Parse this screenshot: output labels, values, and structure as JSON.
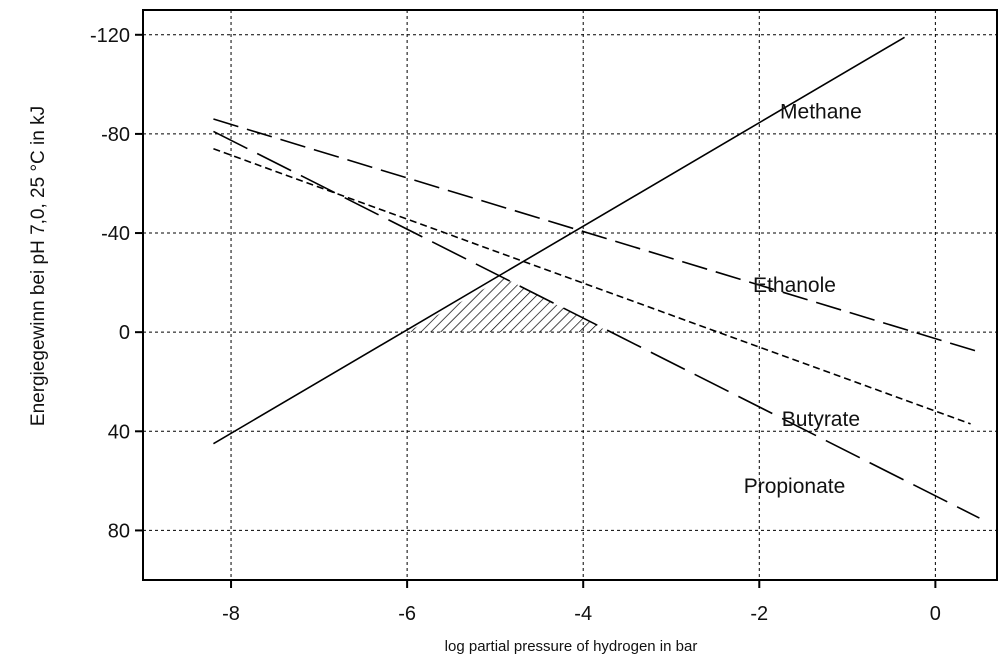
{
  "chart_data": {
    "type": "line",
    "xlabel": "log partial pressure of hydrogen in bar",
    "ylabel": "Energiegewinn bei pH 7,0, 25 °C in kJ",
    "xlim": [
      -9,
      0.7
    ],
    "ylim": [
      -130,
      100
    ],
    "y_reversed": true,
    "grid": true,
    "x_ticks": [
      -8,
      -6,
      -4,
      -2,
      0
    ],
    "x_tick_labels": [
      "-8",
      "-6",
      "-4",
      "-2",
      "0"
    ],
    "y_ticks": [
      -120,
      -80,
      -40,
      0,
      40,
      80
    ],
    "y_tick_labels": [
      "-120",
      "-80",
      "-40",
      "0",
      "40",
      "80"
    ],
    "series": [
      {
        "name": "Methane",
        "style": "solid",
        "x": [
          -8.2,
          -0.35
        ],
        "y": [
          45,
          -119
        ],
        "label_at": [
          -1.3,
          -89
        ]
      },
      {
        "name": "Ethanole",
        "style": "long-dash",
        "x": [
          -8.2,
          0.5
        ],
        "y": [
          -86,
          8
        ],
        "label_at": [
          -1.6,
          -19
        ]
      },
      {
        "name": "Butyrate",
        "style": "short-dash",
        "x": [
          -8.2,
          0.4
        ],
        "y": [
          -74,
          37
        ],
        "label_at": [
          -1.3,
          35
        ]
      },
      {
        "name": "Propionate",
        "style": "long-dash-wide",
        "x": [
          -8.2,
          0.5
        ],
        "y": [
          -81,
          75
        ],
        "label_at": [
          -1.6,
          62
        ]
      }
    ],
    "shaded_region": {
      "pattern": "diagonal-hatch",
      "x": [
        -6.0,
        -4.9,
        -3.7
      ],
      "y": [
        0,
        -22,
        0
      ]
    }
  }
}
